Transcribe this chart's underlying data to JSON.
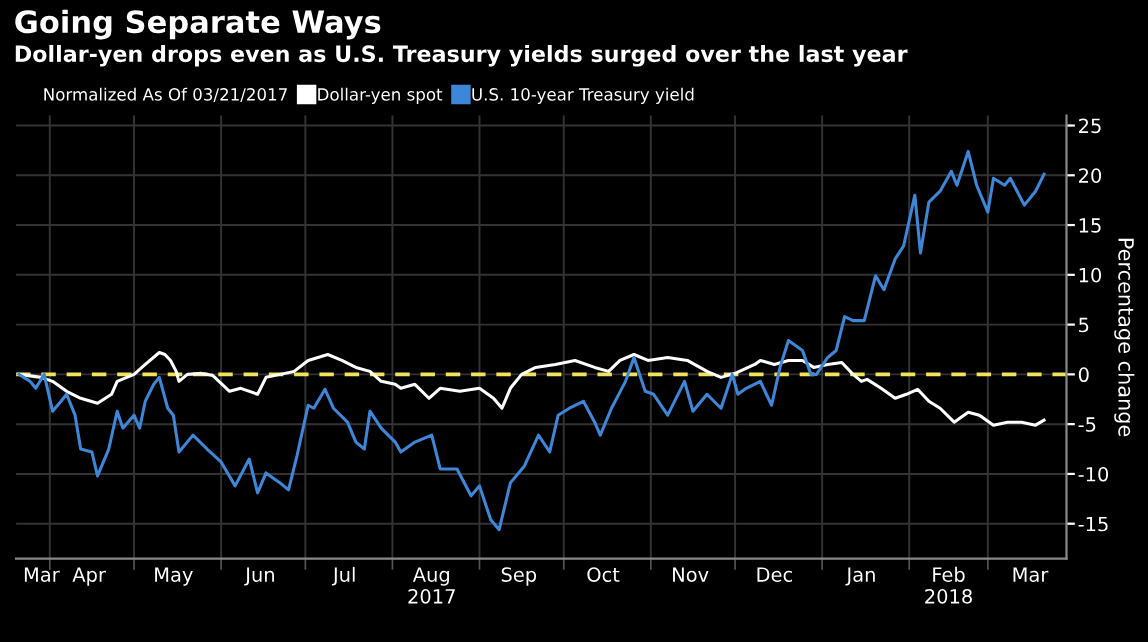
{
  "chart_data": {
    "type": "line",
    "title": "Going Separate Ways",
    "subtitle": "Dollar-yen drops even as U.S. Treasury yields surged over the last year",
    "legend_title": "Normalized As Of 03/21/2017",
    "ylabel": "Percentage change",
    "legend": "top left",
    "grid": true,
    "xlim": [
      "2017-03-20",
      "2018-03-29"
    ],
    "ylim": [
      -18.5,
      26
    ],
    "yticks": [
      -15,
      -10,
      -5,
      0,
      5,
      10,
      15,
      20,
      25
    ],
    "xticks": [
      {
        "value": "2017-03-29",
        "label": "Mar"
      },
      {
        "value": "2017-04-15",
        "label": "Apr"
      },
      {
        "value": "2017-05-15",
        "label": "May"
      },
      {
        "value": "2017-06-15",
        "label": "Jun"
      },
      {
        "value": "2017-07-15",
        "label": "Jul"
      },
      {
        "value": "2017-08-15",
        "label": "Aug\n2017"
      },
      {
        "value": "2017-09-15",
        "label": "Sep"
      },
      {
        "value": "2017-10-15",
        "label": "Oct"
      },
      {
        "value": "2017-11-15",
        "label": "Nov"
      },
      {
        "value": "2017-12-15",
        "label": "Dec"
      },
      {
        "value": "2018-01-15",
        "label": "Jan"
      },
      {
        "value": "2018-02-15",
        "label": "Feb\n2018"
      },
      {
        "value": "2018-03-16",
        "label": "Mar"
      },
      {
        "value": "2017-04-01",
        "label": null
      },
      {
        "value": "2017-05-01",
        "label": null
      },
      {
        "value": "2017-06-01",
        "label": null
      },
      {
        "value": "2017-07-01",
        "label": null
      },
      {
        "value": "2017-08-01",
        "label": null
      },
      {
        "value": "2017-09-01",
        "label": null
      },
      {
        "value": "2017-10-01",
        "label": null
      },
      {
        "value": "2017-11-01",
        "label": null
      },
      {
        "value": "2017-12-01",
        "label": null
      },
      {
        "value": "2018-01-01",
        "label": null
      },
      {
        "value": "2018-02-01",
        "label": null
      },
      {
        "value": "2018-03-01",
        "label": null
      }
    ],
    "ref_lines": [
      {
        "axis": "y",
        "value": 0,
        "color": "#f2e15a",
        "line_style": "dashed"
      }
    ],
    "series": [
      {
        "name": "Dollar-yen spot",
        "color": "#ffffff",
        "x": [
          "2017-03-21",
          "2017-03-29",
          "2017-04-02",
          "2017-04-07",
          "2017-04-12",
          "2017-04-18",
          "2017-04-23",
          "2017-04-25",
          "2017-05-01",
          "2017-05-05",
          "2017-05-10",
          "2017-05-12",
          "2017-05-14",
          "2017-05-16",
          "2017-05-17",
          "2017-05-20",
          "2017-05-25",
          "2017-05-29",
          "2017-06-04",
          "2017-06-08",
          "2017-06-14",
          "2017-06-17",
          "2017-06-22",
          "2017-06-27",
          "2017-07-02",
          "2017-07-09",
          "2017-07-14",
          "2017-07-19",
          "2017-07-24",
          "2017-07-28",
          "2017-08-02",
          "2017-08-04",
          "2017-08-09",
          "2017-08-14",
          "2017-08-18",
          "2017-08-25",
          "2017-09-01",
          "2017-09-06",
          "2017-09-09",
          "2017-09-12",
          "2017-09-16",
          "2017-09-21",
          "2017-09-28",
          "2017-10-05",
          "2017-10-12",
          "2017-10-17",
          "2017-10-21",
          "2017-10-26",
          "2017-10-31",
          "2017-11-07",
          "2017-11-14",
          "2017-11-21",
          "2017-11-26",
          "2017-12-01",
          "2017-12-08",
          "2017-12-10",
          "2017-12-15",
          "2017-12-20",
          "2017-12-25",
          "2017-12-29",
          "2018-01-03",
          "2018-01-08",
          "2018-01-12",
          "2018-01-15",
          "2018-01-17",
          "2018-01-22",
          "2018-01-27",
          "2018-01-31",
          "2018-02-04",
          "2018-02-08",
          "2018-02-12",
          "2018-02-17",
          "2018-02-22",
          "2018-02-26",
          "2018-03-03",
          "2018-03-08",
          "2018-03-13",
          "2018-03-18",
          "2018-03-21"
        ],
        "values": [
          0,
          -0.3,
          -0.7,
          -1.7,
          -2.4,
          -2.9,
          -2.0,
          -0.7,
          0,
          1.0,
          2.2,
          2.0,
          1.4,
          0.3,
          -0.7,
          0,
          0.1,
          -0.1,
          -1.7,
          -1.4,
          -2.0,
          -0.3,
          0,
          0.3,
          1.4,
          2.0,
          1.4,
          0.7,
          0.3,
          -0.7,
          -1.0,
          -1.4,
          -1.0,
          -2.4,
          -1.4,
          -1.7,
          -1.4,
          -2.4,
          -3.4,
          -1.4,
          0,
          0.7,
          1.0,
          1.4,
          0.7,
          0.3,
          1.4,
          2.0,
          1.4,
          1.7,
          1.4,
          0.3,
          -0.3,
          0.1,
          1.0,
          1.4,
          1.0,
          1.4,
          1.4,
          0.7,
          1.0,
          1.2,
          0,
          -0.7,
          -0.5,
          -1.4,
          -2.4,
          -2.0,
          -1.5,
          -2.7,
          -3.4,
          -4.8,
          -3.8,
          -4.1,
          -5.1,
          -4.8,
          -4.8,
          -5.1,
          -4.6
        ]
      },
      {
        "name": "U.S. 10-year Treasury yield",
        "color": "#3d86d8",
        "x": [
          "2017-03-21",
          "2017-03-25",
          "2017-03-27",
          "2017-03-30",
          "2017-04-02",
          "2017-04-05",
          "2017-04-07",
          "2017-04-10",
          "2017-04-12",
          "2017-04-16",
          "2017-04-18",
          "2017-04-22",
          "2017-04-25",
          "2017-04-27",
          "2017-05-01",
          "2017-05-03",
          "2017-05-05",
          "2017-05-08",
          "2017-05-10",
          "2017-05-13",
          "2017-05-15",
          "2017-05-17",
          "2017-05-22",
          "2017-05-27",
          "2017-06-01",
          "2017-06-06",
          "2017-06-11",
          "2017-06-14",
          "2017-06-17",
          "2017-06-22",
          "2017-06-25",
          "2017-06-28",
          "2017-07-02",
          "2017-07-04",
          "2017-07-08",
          "2017-07-11",
          "2017-07-16",
          "2017-07-19",
          "2017-07-22",
          "2017-07-24",
          "2017-07-28",
          "2017-08-02",
          "2017-08-04",
          "2017-08-09",
          "2017-08-15",
          "2017-08-18",
          "2017-08-24",
          "2017-08-29",
          "2017-09-01",
          "2017-09-05",
          "2017-09-08",
          "2017-09-12",
          "2017-09-17",
          "2017-09-22",
          "2017-09-26",
          "2017-09-29",
          "2017-10-03",
          "2017-10-08",
          "2017-10-12",
          "2017-10-14",
          "2017-10-18",
          "2017-10-23",
          "2017-10-26",
          "2017-10-30",
          "2017-11-02",
          "2017-11-07",
          "2017-11-13",
          "2017-11-16",
          "2017-11-21",
          "2017-11-26",
          "2017-11-30",
          "2017-12-02",
          "2017-12-05",
          "2017-12-10",
          "2017-12-14",
          "2017-12-17",
          "2017-12-20",
          "2017-12-25",
          "2017-12-28",
          "2017-12-30",
          "2018-01-03",
          "2018-01-06",
          "2018-01-09",
          "2018-01-12",
          "2018-01-16",
          "2018-01-20",
          "2018-01-23",
          "2018-01-27",
          "2018-01-30",
          "2018-02-03",
          "2018-02-05",
          "2018-02-08",
          "2018-02-12",
          "2018-02-16",
          "2018-02-18",
          "2018-02-22",
          "2018-02-25",
          "2018-03-01",
          "2018-03-03",
          "2018-03-07",
          "2018-03-09",
          "2018-03-14",
          "2018-03-18",
          "2018-03-21"
        ],
        "values": [
          0,
          -0.7,
          -1.4,
          0,
          -3.7,
          -2.7,
          -2.0,
          -4.1,
          -7.5,
          -7.8,
          -10.2,
          -7.5,
          -3.7,
          -5.4,
          -4.1,
          -5.4,
          -2.7,
          -1.0,
          -0.3,
          -3.4,
          -4.1,
          -7.8,
          -6.1,
          -7.5,
          -8.8,
          -11.2,
          -8.5,
          -11.9,
          -9.9,
          -10.9,
          -11.6,
          -8.2,
          -3.1,
          -3.4,
          -1.5,
          -3.4,
          -4.8,
          -6.8,
          -7.5,
          -3.7,
          -5.4,
          -6.8,
          -7.8,
          -6.8,
          -6.1,
          -9.5,
          -9.5,
          -12.2,
          -11.2,
          -14.6,
          -15.6,
          -10.9,
          -9.2,
          -6.1,
          -7.8,
          -4.1,
          -3.4,
          -2.7,
          -4.8,
          -6.1,
          -3.4,
          -0.7,
          1.7,
          -1.7,
          -2.0,
          -4.1,
          -0.7,
          -3.7,
          -2.0,
          -3.4,
          0,
          -2.0,
          -1.4,
          -0.7,
          -3.1,
          0.7,
          3.4,
          2.4,
          0,
          0,
          1.7,
          2.4,
          5.8,
          5.4,
          5.4,
          9.9,
          8.5,
          11.6,
          12.9,
          18.0,
          12.2,
          17.3,
          18.4,
          20.4,
          19.0,
          22.4,
          19.0,
          16.3,
          19.7,
          19.0,
          19.7,
          17.0,
          18.4,
          20.1
        ]
      }
    ]
  }
}
